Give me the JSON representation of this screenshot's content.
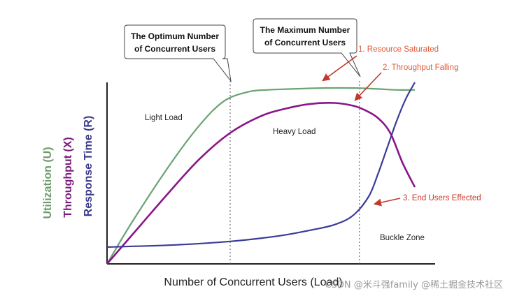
{
  "chart_data": {
    "type": "line",
    "xlabel": "Number of  Concurrent Users (Load)",
    "ylabels": [
      {
        "text": "Utilization (U)",
        "color": "#6b9a6b"
      },
      {
        "text": "Throughput (X)",
        "color": "#7a1a7a"
      },
      {
        "text": "Response Time (R)",
        "color": "#3a3a8a"
      }
    ],
    "x_range": [
      0,
      100
    ],
    "y_range": [
      0,
      100
    ],
    "series": [
      {
        "key": "utilization",
        "color": "#6aa373",
        "x": [
          0,
          8,
          20,
          30,
          38,
          46,
          52,
          60,
          70,
          80,
          88,
          94,
          100
        ],
        "y": [
          0,
          22,
          52,
          74,
          87,
          92,
          93,
          93.5,
          94,
          94,
          93.5,
          93,
          93
        ]
      },
      {
        "key": "throughput",
        "color": "#8a158a",
        "x": [
          0,
          10,
          20,
          30,
          40,
          50,
          58,
          66,
          74,
          80,
          84,
          88,
          92,
          96,
          100
        ],
        "y": [
          0,
          19,
          38,
          56,
          70,
          79,
          83,
          85.5,
          86,
          84.5,
          82,
          78,
          70,
          54,
          41
        ]
      },
      {
        "key": "response_time",
        "color": "#3b3b9a",
        "x": [
          0,
          20,
          40,
          56,
          66,
          74,
          80,
          85,
          88,
          91,
          94,
          97,
          100
        ],
        "y": [
          9,
          10,
          12,
          15,
          18,
          21,
          26,
          36,
          48,
          62,
          76,
          88,
          97
        ]
      }
    ],
    "markers": [
      {
        "key": "optimum",
        "x": 40,
        "label_lines": [
          "The Optimum Number",
          "of Concurrent Users"
        ]
      },
      {
        "key": "maximum",
        "x": 82,
        "label_lines": [
          "The  Maximum  Number",
          "of Concurrent Users"
        ]
      }
    ],
    "regions": [
      {
        "key": "light",
        "text": "Light Load",
        "x": 17,
        "y": 75
      },
      {
        "key": "heavy",
        "text": "Heavy Load",
        "x": 60,
        "y": 68
      },
      {
        "key": "buckle",
        "text": "Buckle Zone",
        "x": 91,
        "y": 12
      }
    ],
    "annotations": [
      {
        "key": "resource",
        "text": "1. Resource Saturated",
        "color": "#e05a3a",
        "target": [
          70,
          94
        ]
      },
      {
        "key": "falling",
        "text": "2. Throughput Falling",
        "color": "#e05a3a",
        "target": [
          80,
          84.5
        ]
      },
      {
        "key": "effected",
        "text": "3. End Users Effected",
        "color": "#c93a2a",
        "target": [
          85,
          36
        ]
      }
    ]
  },
  "watermark": "CSDN @米斗强family  @稀土掘金技术社区"
}
